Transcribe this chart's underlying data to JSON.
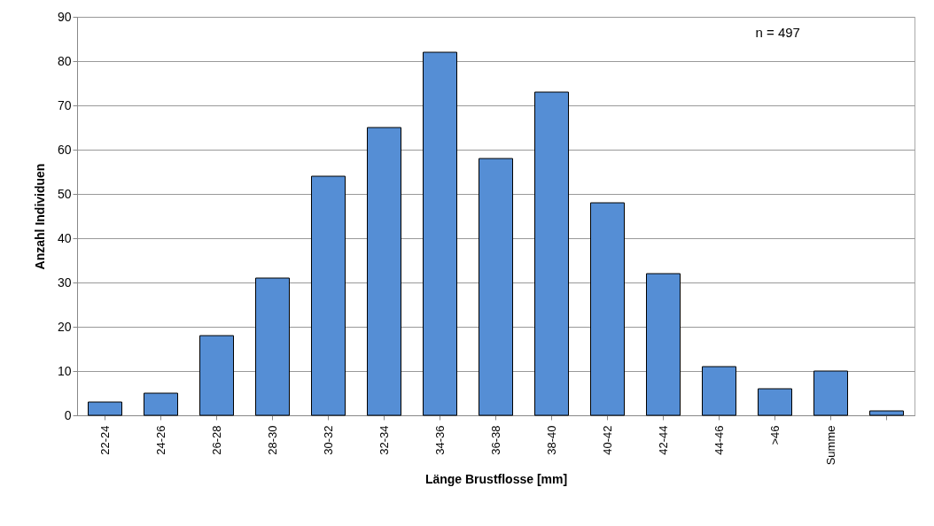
{
  "chart_data": {
    "type": "bar",
    "xlabel": "Länge Brustflosse [mm]",
    "ylabel": "Anzahl Individuen",
    "categories": [
      "22-24",
      "24-26",
      "26-28",
      "28-30",
      "30-32",
      "32-34",
      "34-36",
      "36-38",
      "38-40",
      "40-42",
      "42-44",
      "44-46",
      ">46",
      "Summe",
      null
    ],
    "values": [
      3,
      5,
      18,
      31,
      54,
      65,
      82,
      58,
      73,
      48,
      32,
      11,
      6,
      10,
      1
    ],
    "color": "#558ed5",
    "ylim": [
      0,
      90
    ],
    "yticks": [
      0,
      10,
      20,
      30,
      40,
      50,
      60,
      70,
      80,
      90
    ],
    "grid": "y",
    "annotations": [
      "n = 497"
    ]
  }
}
